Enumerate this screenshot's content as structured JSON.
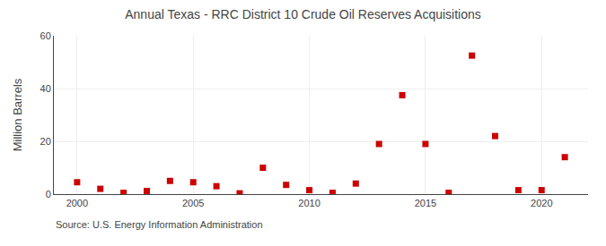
{
  "chart_data": {
    "type": "scatter",
    "title": "Annual Texas - RRC District 10 Crude Oil Reserves Acquisitions",
    "ylabel": "Million Barrels",
    "annotations": [
      "Source: U.S. Energy Information Administration"
    ],
    "x": [
      2000,
      2001,
      2002,
      2003,
      2004,
      2005,
      2006,
      2007,
      2008,
      2009,
      2010,
      2011,
      2012,
      2013,
      2014,
      2015,
      2016,
      2017,
      2018,
      2019,
      2020,
      2021
    ],
    "values": [
      4.5,
      2.0,
      0.5,
      1.2,
      5.0,
      4.5,
      3.0,
      0.3,
      10.0,
      3.5,
      1.5,
      0.5,
      4.0,
      19.0,
      37.5,
      19.0,
      0.5,
      52.5,
      22.0,
      1.5,
      1.5,
      14.0
    ],
    "color": "#cc0000",
    "marker": "square",
    "xlim": [
      1999,
      2022
    ],
    "xticks": [
      2000,
      2005,
      2010,
      2015,
      2020
    ],
    "ylim": [
      0,
      60
    ],
    "yticks": [
      0,
      20,
      40,
      60
    ],
    "grid": true
  }
}
